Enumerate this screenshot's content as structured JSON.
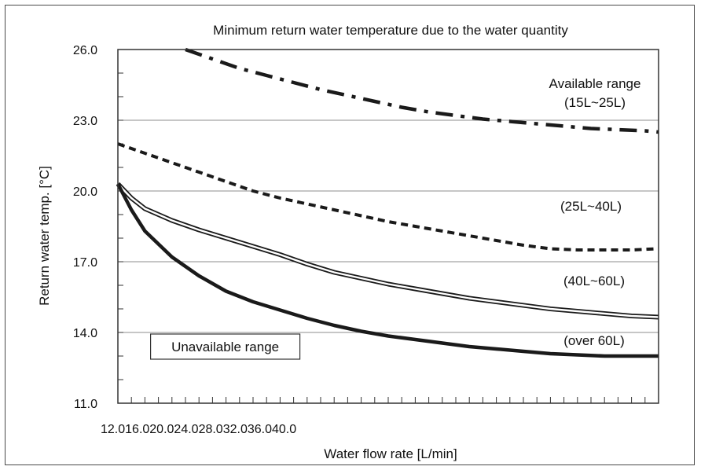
{
  "chart_data": {
    "type": "line",
    "title": "Minimum return water temperature due to the water quantity",
    "xlabel": "Water flow rate [L/min]",
    "ylabel": "Return water temp. [°C]",
    "xlim": [
      12,
      52
    ],
    "ylim": [
      11,
      26
    ],
    "x_tick_labels": [
      "12.0",
      "16.0",
      "20.0",
      "24.0",
      "28.0",
      "32.0",
      "36.0",
      "40.0"
    ],
    "y_ticks": [
      11,
      14,
      17,
      20,
      23,
      26
    ],
    "y_tick_labels": [
      "11.0",
      "14.0",
      "17.0",
      "20.0",
      "23.0",
      "26.0"
    ],
    "grid": true,
    "series": [
      {
        "name": "Available range (15L~25L)",
        "label_lines": [
          "Available range",
          "(15L~25L)"
        ],
        "style": "dashdot",
        "x": [
          17,
          19,
          21,
          23,
          25,
          27,
          29,
          31,
          33,
          35,
          37,
          39,
          41,
          43,
          45,
          47,
          49,
          51,
          52
        ],
        "y": [
          26.0,
          25.6,
          25.2,
          24.9,
          24.6,
          24.3,
          24.05,
          23.8,
          23.55,
          23.35,
          23.2,
          23.05,
          22.95,
          22.85,
          22.75,
          22.65,
          22.6,
          22.55,
          22.5
        ]
      },
      {
        "name": "(25L~40L)",
        "label_lines": [
          "(25L~40L)"
        ],
        "style": "dashed",
        "x": [
          12,
          14,
          16,
          18,
          20,
          22,
          24,
          26,
          28,
          30,
          32,
          34,
          36,
          38,
          40,
          42,
          44,
          46,
          48,
          50,
          52
        ],
        "y": [
          22.0,
          21.6,
          21.2,
          20.8,
          20.4,
          20.0,
          19.7,
          19.45,
          19.2,
          18.95,
          18.7,
          18.5,
          18.3,
          18.1,
          17.9,
          17.7,
          17.55,
          17.5,
          17.5,
          17.5,
          17.55
        ]
      },
      {
        "name": "(40L~60L)",
        "label_lines": [
          "(40L~60L)"
        ],
        "style": "double",
        "x": [
          12,
          13,
          14,
          16,
          18,
          20,
          22,
          24,
          26,
          28,
          30,
          32,
          34,
          36,
          38,
          40,
          42,
          44,
          46,
          48,
          50,
          52
        ],
        "y": [
          20.3,
          19.7,
          19.25,
          18.75,
          18.35,
          18.0,
          17.65,
          17.3,
          16.9,
          16.55,
          16.3,
          16.05,
          15.85,
          15.65,
          15.45,
          15.3,
          15.15,
          15.0,
          14.9,
          14.8,
          14.7,
          14.65
        ]
      },
      {
        "name": "(over 60L)",
        "label_lines": [
          "(over 60L)"
        ],
        "style": "thick",
        "x": [
          12,
          13,
          14,
          16,
          18,
          20,
          22,
          24,
          26,
          28,
          30,
          32,
          34,
          36,
          38,
          40,
          42,
          44,
          46,
          48,
          50,
          52
        ],
        "y": [
          20.3,
          19.2,
          18.3,
          17.2,
          16.4,
          15.75,
          15.3,
          14.95,
          14.6,
          14.3,
          14.05,
          13.85,
          13.7,
          13.55,
          13.4,
          13.3,
          13.2,
          13.1,
          13.05,
          13.0,
          13.0,
          13.0
        ]
      }
    ],
    "annotations": [
      {
        "text": "Unavailable range",
        "boxed": true,
        "x": 15,
        "y": 13.1
      }
    ]
  }
}
